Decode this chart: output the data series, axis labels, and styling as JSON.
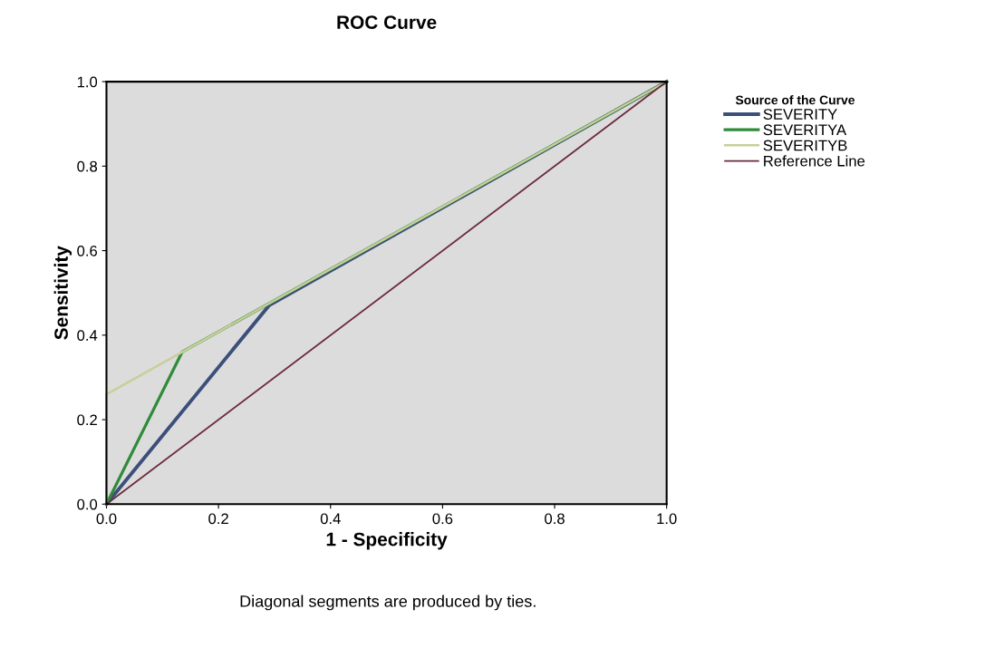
{
  "chart_data": {
    "type": "line",
    "title": "ROC Curve",
    "xlabel": "1 - Specificity",
    "ylabel": "Sensitivity",
    "legend_title": "Source of the Curve",
    "annotations": [
      "Diagonal segments are produced by ties."
    ],
    "series": [
      {
        "name": "SEVERITY",
        "color": "#3c4f7a",
        "x": [
          0,
          0.29,
          1
        ],
        "values": [
          0,
          0.47,
          1
        ]
      },
      {
        "name": "SEVERITYA",
        "color": "#2e8b3a",
        "x": [
          0,
          0.135,
          1
        ],
        "values": [
          0,
          0.36,
          1
        ]
      },
      {
        "name": "SEVERITYB",
        "color": "#c8cf9a",
        "x": [
          0,
          0,
          1
        ],
        "values": [
          0,
          0.26,
          1
        ]
      },
      {
        "name": "Reference Line",
        "color": "#6b2a3c",
        "x": [
          0,
          1
        ],
        "values": [
          0,
          1
        ]
      }
    ],
    "xlim": [
      0,
      1
    ],
    "ylim": [
      0,
      1
    ],
    "xticks": [
      {
        "value": 0,
        "label": "0.0"
      },
      0.2,
      0.4,
      0.6,
      0.8,
      {
        "value": 1,
        "label": "1.0"
      }
    ],
    "yticks": [
      {
        "value": 0,
        "label": "0.0"
      },
      0.2,
      0.4,
      0.6,
      0.8,
      {
        "value": 1,
        "label": "1.0"
      }
    ],
    "grid": false,
    "legend": "right",
    "marker": "none",
    "line_style": "solid"
  }
}
